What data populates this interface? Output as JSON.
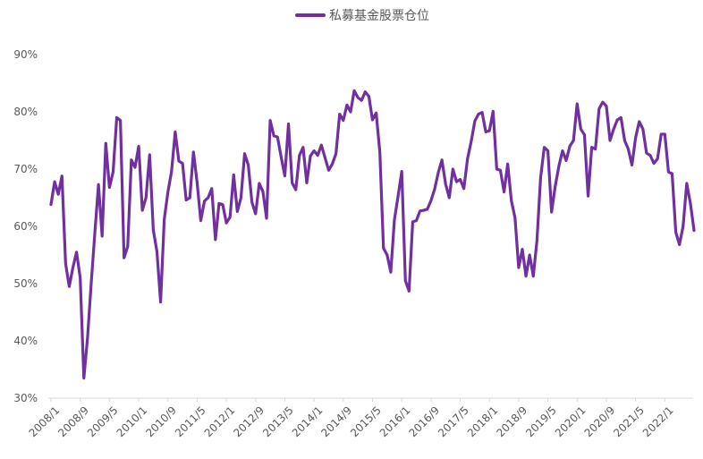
{
  "chart_data": {
    "type": "line",
    "legend": {
      "label": "私募基金股票仓位",
      "position": "top-center"
    },
    "line_color": "#7030a0",
    "ylim": [
      30,
      90
    ],
    "y_ticks": [
      "30%",
      "40%",
      "50%",
      "60%",
      "70%",
      "80%",
      "90%"
    ],
    "y_tick_values": [
      30,
      40,
      50,
      60,
      70,
      80,
      90
    ],
    "x_tick_labels": [
      "2008/1",
      "2008/9",
      "2009/5",
      "2010/1",
      "2010/9",
      "2011/5",
      "2012/1",
      "2012/9",
      "2013/5",
      "2014/1",
      "2014/9",
      "2015/5",
      "2016/1",
      "2016/9",
      "2017/5",
      "2018/1",
      "2018/9",
      "2019/5",
      "2020/1",
      "2020/9",
      "2021/5",
      "2022/1"
    ],
    "grid": "y-axis baseline only",
    "series": [
      {
        "name": "私募基金股票仓位",
        "start": "2008/1",
        "frequency": "monthly",
        "values": [
          63.8,
          67.8,
          65.6,
          68.8,
          53.5,
          49.5,
          52.8,
          55.5,
          51.0,
          33.5,
          40.5,
          50.0,
          58.8,
          67.3,
          58.3,
          74.5,
          66.8,
          69.5,
          79.0,
          78.5,
          54.5,
          56.5,
          71.6,
          70.3,
          74.0,
          62.8,
          65.0,
          72.5,
          59.4,
          55.6,
          46.8,
          61.2,
          66.0,
          69.6,
          76.5,
          71.4,
          71.0,
          64.6,
          65.0,
          73.0,
          67.6,
          61.0,
          64.4,
          65.0,
          66.6,
          57.7,
          64.0,
          63.8,
          60.6,
          61.6,
          69.0,
          62.6,
          65.0,
          72.7,
          70.7,
          64.2,
          62.2,
          67.5,
          66.1,
          61.4,
          78.5,
          75.8,
          75.6,
          72.1,
          68.8,
          77.9,
          67.6,
          66.4,
          72.4,
          73.8,
          67.6,
          72.3,
          73.2,
          72.4,
          74.2,
          72.0,
          69.8,
          70.9,
          72.7,
          79.6,
          78.5,
          81.2,
          80.0,
          83.7,
          82.5,
          82.0,
          83.5,
          82.7,
          78.6,
          79.8,
          73.0,
          56.2,
          55.0,
          52.0,
          61.2,
          65.3,
          69.6,
          50.5,
          48.7,
          60.8,
          61.0,
          62.7,
          62.8,
          63.0,
          64.5,
          66.5,
          69.4,
          71.6,
          67.4,
          65.0,
          70.0,
          67.8,
          68.2,
          66.6,
          71.8,
          74.8,
          78.4,
          79.6,
          79.9,
          76.5,
          76.7,
          80.1,
          70.0,
          69.8,
          66.0,
          70.9,
          64.5,
          61.5,
          52.8,
          56.0,
          51.3,
          55.0,
          51.3,
          57.5,
          68.5,
          73.8,
          73.2,
          62.5,
          67.0,
          70.5,
          73.2,
          71.5,
          74.0,
          75.0,
          81.4,
          77.0,
          76.0,
          65.3,
          73.8,
          73.5,
          80.5,
          81.7,
          81.0,
          75.0,
          77.0,
          78.6,
          79.0,
          75.0,
          73.5,
          70.7,
          75.5,
          78.3,
          77.0,
          72.8,
          72.4,
          71.0,
          71.8,
          76.1,
          76.1,
          69.5,
          69.2,
          59.0,
          56.8,
          60.0,
          67.5,
          64.0,
          59.3
        ]
      }
    ]
  }
}
